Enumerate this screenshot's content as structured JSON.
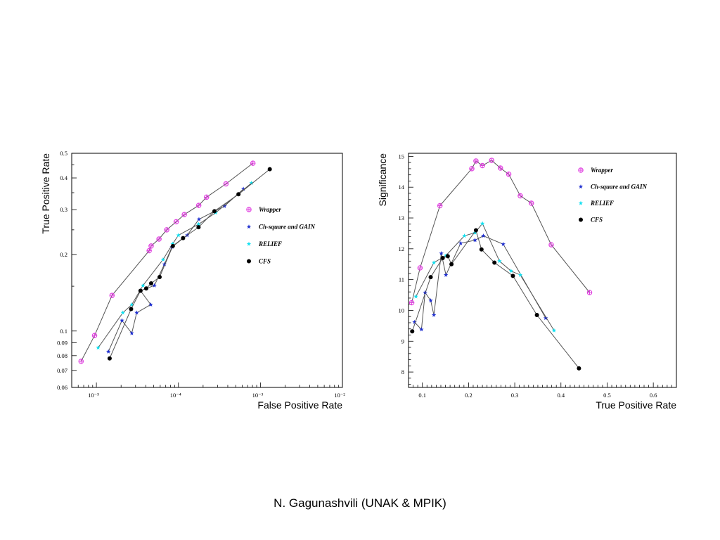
{
  "footer": {
    "text": "N. Gagunashvili (UNAK & MPIK)"
  },
  "chart_data": [
    {
      "type": "line",
      "title": "",
      "xlabel": "False Positive Rate",
      "ylabel": "True Positive Rate",
      "xscale": "log",
      "yscale": "log",
      "xlim": [
        5e-06,
        0.01
      ],
      "ylim": [
        0.06,
        0.5
      ],
      "x_tick_labels": [
        "10⁻⁵",
        "10⁻⁴",
        "10⁻³",
        "10⁻²"
      ],
      "y_tick_labels": [
        "0.5",
        "0.4",
        "0.3",
        "0.2",
        "0.1",
        "0.09",
        "0.08",
        "0.07",
        "0.06"
      ],
      "y_ticks": [
        0.5,
        0.4,
        0.3,
        0.2,
        0.1,
        0.09,
        0.08,
        0.07,
        0.06
      ],
      "legend_position": "right",
      "grid": false,
      "series": [
        {
          "name": "Wrapper",
          "marker": "circle-plus",
          "color": "#e040e0",
          "x": [
            6.5e-06,
            9.5e-06,
            1.55e-05,
            4.4e-05,
            4.65e-05,
            5.8e-05,
            7.2e-05,
            9.4e-05,
            0.000118,
            0.000177,
            0.00022,
            0.00038,
            0.00081
          ],
          "y": [
            0.076,
            0.096,
            0.138,
            0.207,
            0.216,
            0.23,
            0.25,
            0.269,
            0.287,
            0.312,
            0.336,
            0.379,
            0.457
          ]
        },
        {
          "name": "Ch-square and GAIN",
          "marker": "star",
          "color": "#2030d0",
          "x": [
            1.4e-05,
            2.05e-05,
            2.7e-05,
            3.1e-05,
            4.6e-05,
            3.45e-05,
            5.1e-05,
            6.75e-05,
            8.35e-05,
            0.000128,
            0.000178,
            0.000365,
            0.00062
          ],
          "y": [
            0.083,
            0.11,
            0.098,
            0.118,
            0.127,
            0.144,
            0.151,
            0.183,
            0.214,
            0.238,
            0.275,
            0.31,
            0.362
          ]
        },
        {
          "name": "RELIEF",
          "marker": "star",
          "color": "#10e0f0",
          "x": [
            1.05e-05,
            2.1e-05,
            2.7e-05,
            3.7e-05,
            6.5e-05,
            8.5e-05,
            0.0001,
            0.000176,
            0.000285,
            0.00078
          ],
          "y": [
            0.086,
            0.118,
            0.127,
            0.151,
            0.191,
            0.22,
            0.238,
            0.263,
            0.292,
            0.382
          ]
        },
        {
          "name": "CFS",
          "marker": "dot",
          "color": "#000000",
          "x": [
            1.45e-05,
            2.65e-05,
            3.45e-05,
            4.05e-05,
            4.65e-05,
            5.9e-05,
            8.55e-05,
            0.000114,
            0.000176,
            0.000275,
            0.00054,
            0.0013
          ],
          "y": [
            0.078,
            0.122,
            0.144,
            0.147,
            0.154,
            0.163,
            0.216,
            0.232,
            0.256,
            0.296,
            0.345,
            0.433
          ]
        }
      ]
    },
    {
      "type": "line",
      "title": "",
      "xlabel": "True Positive Rate",
      "ylabel": "Significance",
      "xlim": [
        0.07,
        0.65
      ],
      "ylim": [
        7.5,
        15.1
      ],
      "x_tick_labels": [
        "0.1",
        "0.2",
        "0.3",
        "0.4",
        "0.5",
        "0.6"
      ],
      "x_ticks": [
        0.1,
        0.2,
        0.3,
        0.4,
        0.5,
        0.6
      ],
      "y_tick_labels": [
        "8",
        "9",
        "10",
        "11",
        "12",
        "13",
        "14",
        "15"
      ],
      "y_ticks": [
        8,
        9,
        10,
        11,
        12,
        13,
        14,
        15
      ],
      "legend_position": "top-right",
      "grid": false,
      "series": [
        {
          "name": "Wrapper",
          "marker": "circle-plus",
          "color": "#e040e0",
          "x": [
            0.077,
            0.095,
            0.138,
            0.207,
            0.216,
            0.23,
            0.25,
            0.269,
            0.287,
            0.312,
            0.336,
            0.379,
            0.462
          ],
          "y": [
            10.25,
            11.38,
            13.4,
            14.6,
            14.85,
            14.7,
            14.87,
            14.62,
            14.42,
            13.72,
            13.48,
            12.13,
            10.58
          ]
        },
        {
          "name": "Ch-square and GAIN",
          "marker": "star",
          "color": "#2030d0",
          "x": [
            0.083,
            0.098,
            0.106,
            0.118,
            0.125,
            0.141,
            0.151,
            0.183,
            0.214,
            0.232,
            0.275,
            0.367
          ],
          "y": [
            9.62,
            9.38,
            10.58,
            10.32,
            9.85,
            11.85,
            11.15,
            12.18,
            12.28,
            12.42,
            12.15,
            9.75
          ]
        },
        {
          "name": "RELIEF",
          "marker": "star",
          "color": "#10e0f0",
          "x": [
            0.086,
            0.125,
            0.151,
            0.191,
            0.214,
            0.23,
            0.267,
            0.292,
            0.312,
            0.385
          ],
          "y": [
            10.45,
            11.55,
            11.78,
            12.42,
            12.52,
            12.82,
            11.6,
            11.28,
            11.15,
            9.35
          ]
        },
        {
          "name": "CFS",
          "marker": "dot",
          "color": "#000000",
          "x": [
            0.078,
            0.118,
            0.144,
            0.155,
            0.163,
            0.216,
            0.228,
            0.256,
            0.296,
            0.348,
            0.439
          ],
          "y": [
            9.32,
            11.08,
            11.7,
            11.76,
            11.5,
            12.6,
            11.98,
            11.55,
            11.12,
            9.85,
            8.12
          ]
        }
      ]
    }
  ]
}
